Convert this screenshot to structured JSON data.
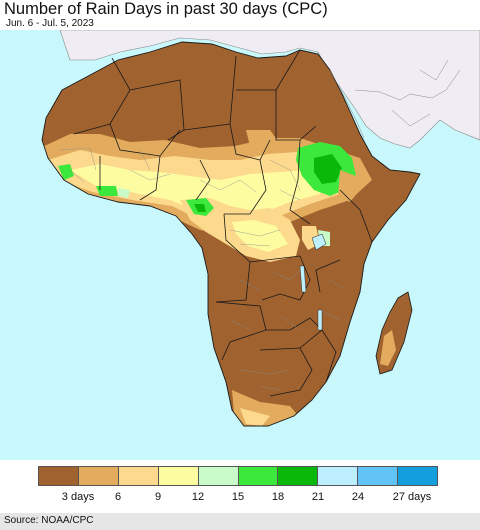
{
  "header": {
    "title": "Number of Rain Days in past 30 days (CPC)",
    "subtitle": "Jun. 6 - Jul. 5, 2023"
  },
  "map": {
    "ocean_color": "#c8f8fc",
    "non_africa_land_color": "#efecf3",
    "country_border_color": "#1a1a1a",
    "admin_border_color": "#8a8a8a"
  },
  "legend": {
    "colors": [
      "#a0622f",
      "#e2ab5d",
      "#fcd98c",
      "#fefca0",
      "#c9fbc9",
      "#3de83d",
      "#0ab80a",
      "#bdefff",
      "#62c3f7",
      "#139ede"
    ],
    "labels": [
      "3 days",
      "6",
      "9",
      "12",
      "15",
      "18",
      "21",
      "24",
      "27 days"
    ]
  },
  "footer": {
    "source": "Source: NOAA/CPC"
  }
}
